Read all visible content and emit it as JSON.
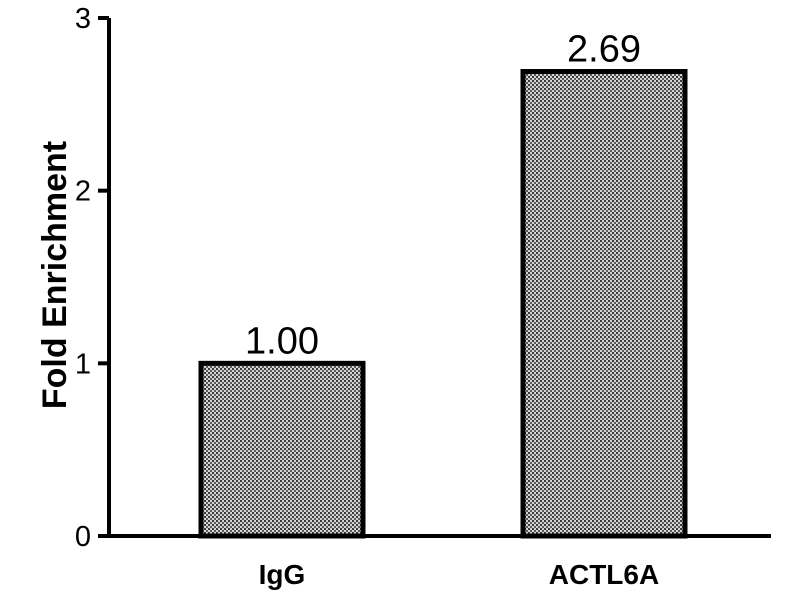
{
  "chart_data": {
    "type": "bar",
    "categories": [
      "IgG",
      "ACTL6A"
    ],
    "values": [
      1.0,
      2.69
    ],
    "data_labels": [
      "1.00",
      "2.69"
    ],
    "ylabel": "Fold Enrichment",
    "xlabel": "",
    "ylim": [
      0,
      3
    ],
    "yticks": [
      0,
      1,
      2,
      3
    ],
    "ytick_labels": [
      "0",
      "1",
      "2",
      "3"
    ],
    "grid": false,
    "bar_fill": "#8f8f8f",
    "bar_pattern": "dotted"
  }
}
